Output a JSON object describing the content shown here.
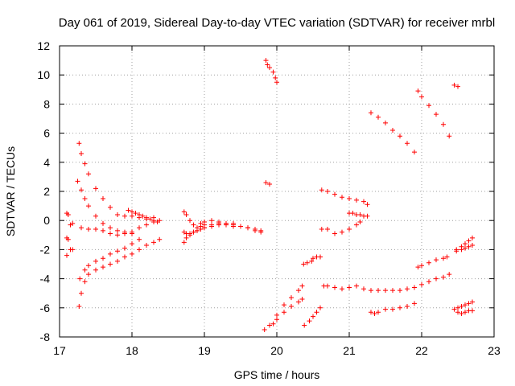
{
  "chart_data": {
    "type": "scatter",
    "title": "Day 061 of 2019, Sidereal Day-to-day VTEC variation (SDTVAR) for receiver mrbl",
    "xlabel": "GPS time / hours",
    "ylabel": "SDTVAR / TECUs",
    "xlim": [
      17,
      23
    ],
    "ylim": [
      -8,
      12
    ],
    "xticks": [
      "17",
      "18",
      "19",
      "20",
      "21",
      "22",
      "23"
    ],
    "yticks": [
      "-8",
      "-6",
      "-4",
      "-2",
      "0",
      "2",
      "4",
      "6",
      "8",
      "10",
      "12"
    ],
    "grid": true,
    "marker": "+",
    "color": "#ff0000",
    "series": [
      {
        "name": "s1",
        "x": [
          17.27,
          17.3,
          17.35,
          17.4,
          17.5,
          17.6,
          17.7,
          17.8,
          17.9,
          18.0,
          18.1,
          18.2,
          18.3
        ],
        "y": [
          5.3,
          4.6,
          3.9,
          3.2,
          2.2,
          1.5,
          0.9,
          0.4,
          0.3,
          0.3,
          0.2,
          0.1,
          0.2
        ]
      },
      {
        "name": "s2",
        "x": [
          17.25,
          17.3,
          17.35,
          17.4,
          17.5,
          17.6,
          17.7,
          17.8,
          17.9,
          18.0
        ],
        "y": [
          2.7,
          2.1,
          1.5,
          1.0,
          0.3,
          -0.2,
          -0.5,
          -0.7,
          -0.8,
          -0.9
        ]
      },
      {
        "name": "s3",
        "x": [
          17.3,
          17.4,
          17.5,
          17.6,
          17.7,
          17.8,
          17.9,
          18.0,
          18.1,
          18.2,
          18.3,
          18.38
        ],
        "y": [
          -0.5,
          -0.6,
          -0.6,
          -0.7,
          -0.9,
          -1.0,
          -0.9,
          -0.8,
          -0.5,
          -0.3,
          -0.1,
          0.0
        ]
      },
      {
        "name": "s4",
        "x": [
          17.27,
          17.3,
          17.35,
          17.4,
          17.5,
          17.6,
          17.7,
          17.8,
          17.9,
          18.0,
          18.1,
          18.2,
          18.3,
          18.38
        ],
        "y": [
          -5.9,
          -5.0,
          -4.2,
          -3.7,
          -3.4,
          -3.2,
          -3.0,
          -2.8,
          -2.5,
          -2.3,
          -2.0,
          -1.7,
          -1.5,
          -1.3
        ]
      },
      {
        "name": "s5",
        "x": [
          17.28,
          17.35,
          17.4,
          17.5,
          17.6,
          17.7,
          17.8,
          17.9,
          18.0,
          18.1
        ],
        "y": [
          -4.0,
          -3.4,
          -3.1,
          -2.8,
          -2.6,
          -2.3,
          -2.1,
          -1.9,
          -1.6,
          -1.3
        ]
      },
      {
        "name": "s6",
        "x": [
          17.1,
          17.12,
          17.15,
          17.18
        ],
        "y": [
          0.5,
          0.4,
          -0.3,
          -0.2
        ]
      },
      {
        "name": "s7",
        "x": [
          17.1,
          17.12,
          17.15,
          17.18,
          17.1
        ],
        "y": [
          -1.2,
          -1.3,
          -2.0,
          -2.0,
          -2.4
        ]
      },
      {
        "name": "s8",
        "x": [
          17.95,
          18.0,
          18.05,
          18.1,
          18.15,
          18.2,
          18.25,
          18.3,
          18.35
        ],
        "y": [
          0.7,
          0.6,
          0.5,
          0.4,
          0.3,
          0.2,
          0.1,
          0.0,
          -0.1
        ]
      },
      {
        "name": "s9",
        "x": [
          18.72,
          18.75,
          18.8,
          18.85,
          18.9,
          18.95,
          19.0
        ],
        "y": [
          0.6,
          0.4,
          0.0,
          -0.3,
          -0.5,
          -0.4,
          -0.3
        ]
      },
      {
        "name": "s10",
        "x": [
          18.72,
          18.75,
          18.8,
          18.85,
          18.9,
          19.0,
          19.1,
          19.2,
          19.3,
          19.4,
          19.5,
          19.6,
          19.7,
          19.78
        ],
        "y": [
          -1.5,
          -1.2,
          -1.0,
          -0.8,
          -0.7,
          -0.5,
          -0.3,
          -0.2,
          -0.2,
          -0.3,
          -0.4,
          -0.5,
          -0.7,
          -0.8
        ]
      },
      {
        "name": "s11",
        "x": [
          18.95,
          19.0,
          19.1,
          19.2,
          19.3,
          19.4,
          19.5,
          19.6,
          19.7,
          19.78
        ],
        "y": [
          -0.2,
          -0.1,
          0.0,
          -0.1,
          -0.2,
          -0.2,
          -0.4,
          -0.5,
          -0.6,
          -0.7
        ]
      },
      {
        "name": "s12",
        "x": [
          18.72,
          18.75,
          18.8,
          18.85,
          18.9,
          18.95,
          19.0,
          19.1,
          19.2,
          19.3,
          19.4
        ],
        "y": [
          -0.8,
          -0.9,
          -0.9,
          -0.8,
          -0.7,
          -0.6,
          -0.5,
          -0.4,
          -0.3,
          -0.3,
          -0.4
        ]
      },
      {
        "name": "s13",
        "x": [
          19.85,
          19.87,
          19.9,
          19.95,
          19.98,
          20.0
        ],
        "y": [
          11.0,
          10.7,
          10.5,
          10.2,
          9.8,
          9.5
        ]
      },
      {
        "name": "s14",
        "x": [
          19.85,
          19.9
        ],
        "y": [
          2.6,
          2.5
        ]
      },
      {
        "name": "s15",
        "x": [
          19.83,
          19.9,
          20.0,
          20.1,
          20.2,
          20.3,
          20.35
        ],
        "y": [
          -7.5,
          -7.2,
          -6.5,
          -5.8,
          -5.3,
          -4.8,
          -4.5
        ]
      },
      {
        "name": "s16",
        "x": [
          19.95,
          20.0,
          20.1,
          20.2,
          20.3,
          20.35
        ],
        "y": [
          -7.1,
          -6.8,
          -6.3,
          -5.9,
          -5.6,
          -5.4
        ]
      },
      {
        "name": "s17",
        "x": [
          20.37,
          20.42,
          20.48
        ],
        "y": [
          -3.0,
          -2.9,
          -2.8
        ]
      },
      {
        "name": "s18",
        "x": [
          20.5,
          20.55,
          20.6
        ],
        "y": [
          -2.6,
          -2.5,
          -2.5
        ]
      },
      {
        "name": "s19",
        "x": [
          20.38,
          20.45,
          20.5,
          20.55,
          20.6
        ],
        "y": [
          -7.2,
          -6.9,
          -6.6,
          -6.3,
          -6.0
        ]
      },
      {
        "name": "s20",
        "x": [
          20.62,
          20.7,
          20.8,
          20.9,
          21.0,
          21.1,
          21.2,
          21.25
        ],
        "y": [
          2.1,
          2.0,
          1.8,
          1.6,
          1.5,
          1.4,
          1.3,
          1.1
        ]
      },
      {
        "name": "s21",
        "x": [
          20.62,
          20.7,
          20.8,
          20.9,
          21.0,
          21.1,
          21.15
        ],
        "y": [
          -0.6,
          -0.6,
          -0.9,
          -0.8,
          -0.6,
          -0.3,
          -0.1
        ]
      },
      {
        "name": "s22",
        "x": [
          21.0,
          21.05,
          21.1,
          21.15,
          21.2,
          21.25
        ],
        "y": [
          0.5,
          0.5,
          0.4,
          0.4,
          0.3,
          0.3
        ]
      },
      {
        "name": "s23",
        "x": [
          20.65,
          20.7,
          20.8,
          20.9,
          21.0,
          21.1,
          21.2,
          21.3,
          21.4,
          21.5,
          21.6,
          21.7,
          21.8,
          21.9,
          22.0,
          22.1,
          22.2,
          22.3,
          22.38
        ],
        "y": [
          -4.5,
          -4.5,
          -4.6,
          -4.7,
          -4.6,
          -4.5,
          -4.7,
          -4.8,
          -4.8,
          -4.8,
          -4.8,
          -4.8,
          -4.7,
          -4.6,
          -4.4,
          -4.2,
          -4.0,
          -3.9,
          -3.7
        ]
      },
      {
        "name": "s24",
        "x": [
          21.3,
          21.35,
          21.4,
          21.5,
          21.6,
          21.7,
          21.8,
          21.9
        ],
        "y": [
          -6.3,
          -6.4,
          -6.3,
          -6.1,
          -6.1,
          -6.0,
          -5.9,
          -5.7
        ]
      },
      {
        "name": "s25",
        "x": [
          21.3,
          21.4,
          21.5,
          21.6,
          21.7,
          21.8,
          21.9
        ],
        "y": [
          7.4,
          7.1,
          6.7,
          6.2,
          5.8,
          5.3,
          4.7
        ]
      },
      {
        "name": "s26",
        "x": [
          21.95,
          22.0,
          22.1,
          22.2,
          22.3,
          22.38
        ],
        "y": [
          8.9,
          8.5,
          7.9,
          7.3,
          6.6,
          5.8
        ]
      },
      {
        "name": "s27",
        "x": [
          22.45,
          22.5
        ],
        "y": [
          9.3,
          9.2
        ]
      },
      {
        "name": "s28",
        "x": [
          21.95,
          22.0,
          22.1,
          22.2,
          22.3,
          22.35
        ],
        "y": [
          -3.2,
          -3.1,
          -2.9,
          -2.7,
          -2.6,
          -2.5
        ]
      },
      {
        "name": "s29",
        "x": [
          22.48,
          22.55,
          22.6,
          22.65,
          22.7
        ],
        "y": [
          -2.0,
          -1.8,
          -1.6,
          -1.4,
          -1.2
        ]
      },
      {
        "name": "s30",
        "x": [
          22.48,
          22.55,
          22.6,
          22.65,
          22.7
        ],
        "y": [
          -2.1,
          -2.0,
          -1.9,
          -1.8,
          -1.7
        ]
      },
      {
        "name": "s31",
        "x": [
          22.45,
          22.5,
          22.55,
          22.6,
          22.65,
          22.7
        ],
        "y": [
          -6.1,
          -6.0,
          -5.9,
          -5.8,
          -5.7,
          -5.6
        ]
      },
      {
        "name": "s32",
        "x": [
          22.5,
          22.55,
          22.6,
          22.65,
          22.7
        ],
        "y": [
          -6.3,
          -6.4,
          -6.3,
          -6.2,
          -6.2
        ]
      }
    ]
  }
}
